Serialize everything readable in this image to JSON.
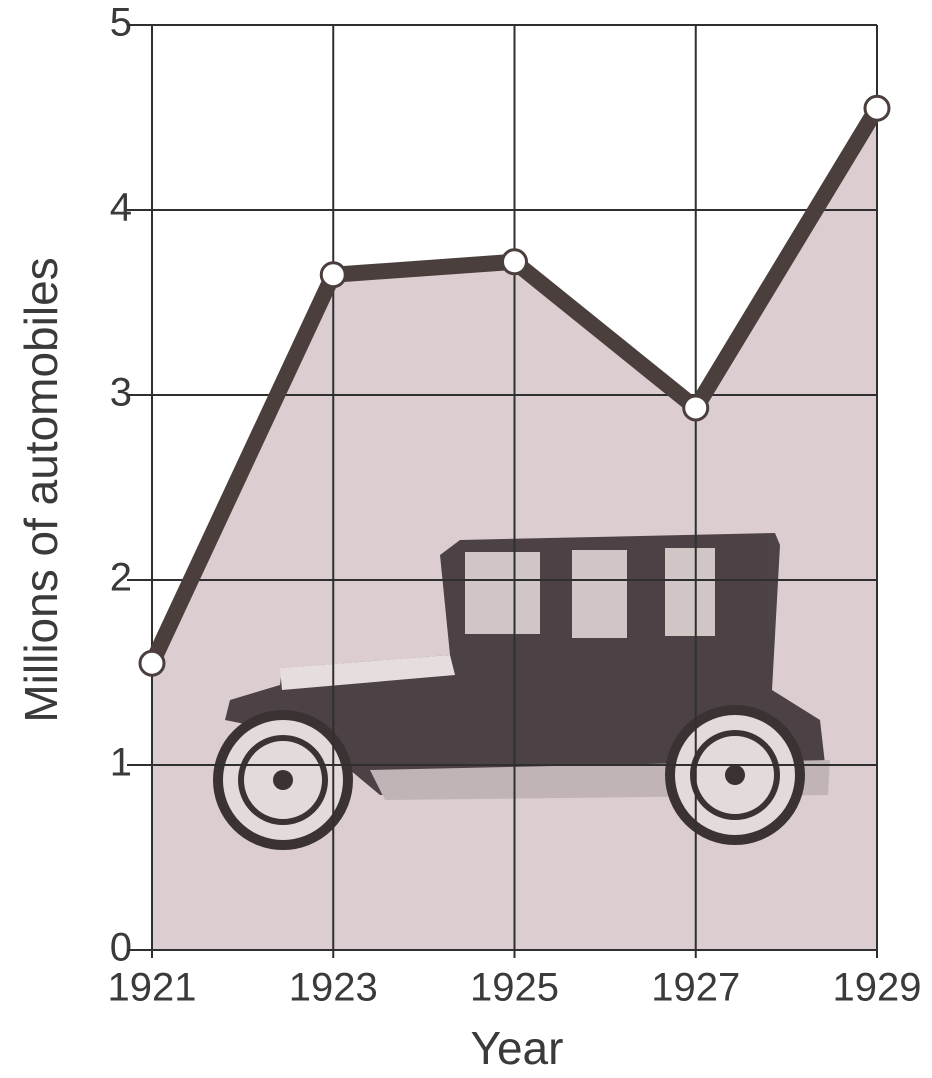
{
  "chart_data": {
    "type": "line",
    "x_label": "Year",
    "y_label": "Millions of automobiles",
    "x": [
      1921,
      1923,
      1925,
      1927,
      1929
    ],
    "values": [
      1.55,
      3.65,
      3.72,
      2.93,
      4.55
    ],
    "color": "#4a3f3c",
    "fill_color": "#dccdd0",
    "xlim": [
      1921,
      1929
    ],
    "xticks": [
      1921,
      1923,
      1925,
      1927,
      1929
    ],
    "ylim": [
      0,
      5
    ],
    "yticks": [
      0,
      1,
      2,
      3,
      4,
      5
    ],
    "grid": true
  }
}
